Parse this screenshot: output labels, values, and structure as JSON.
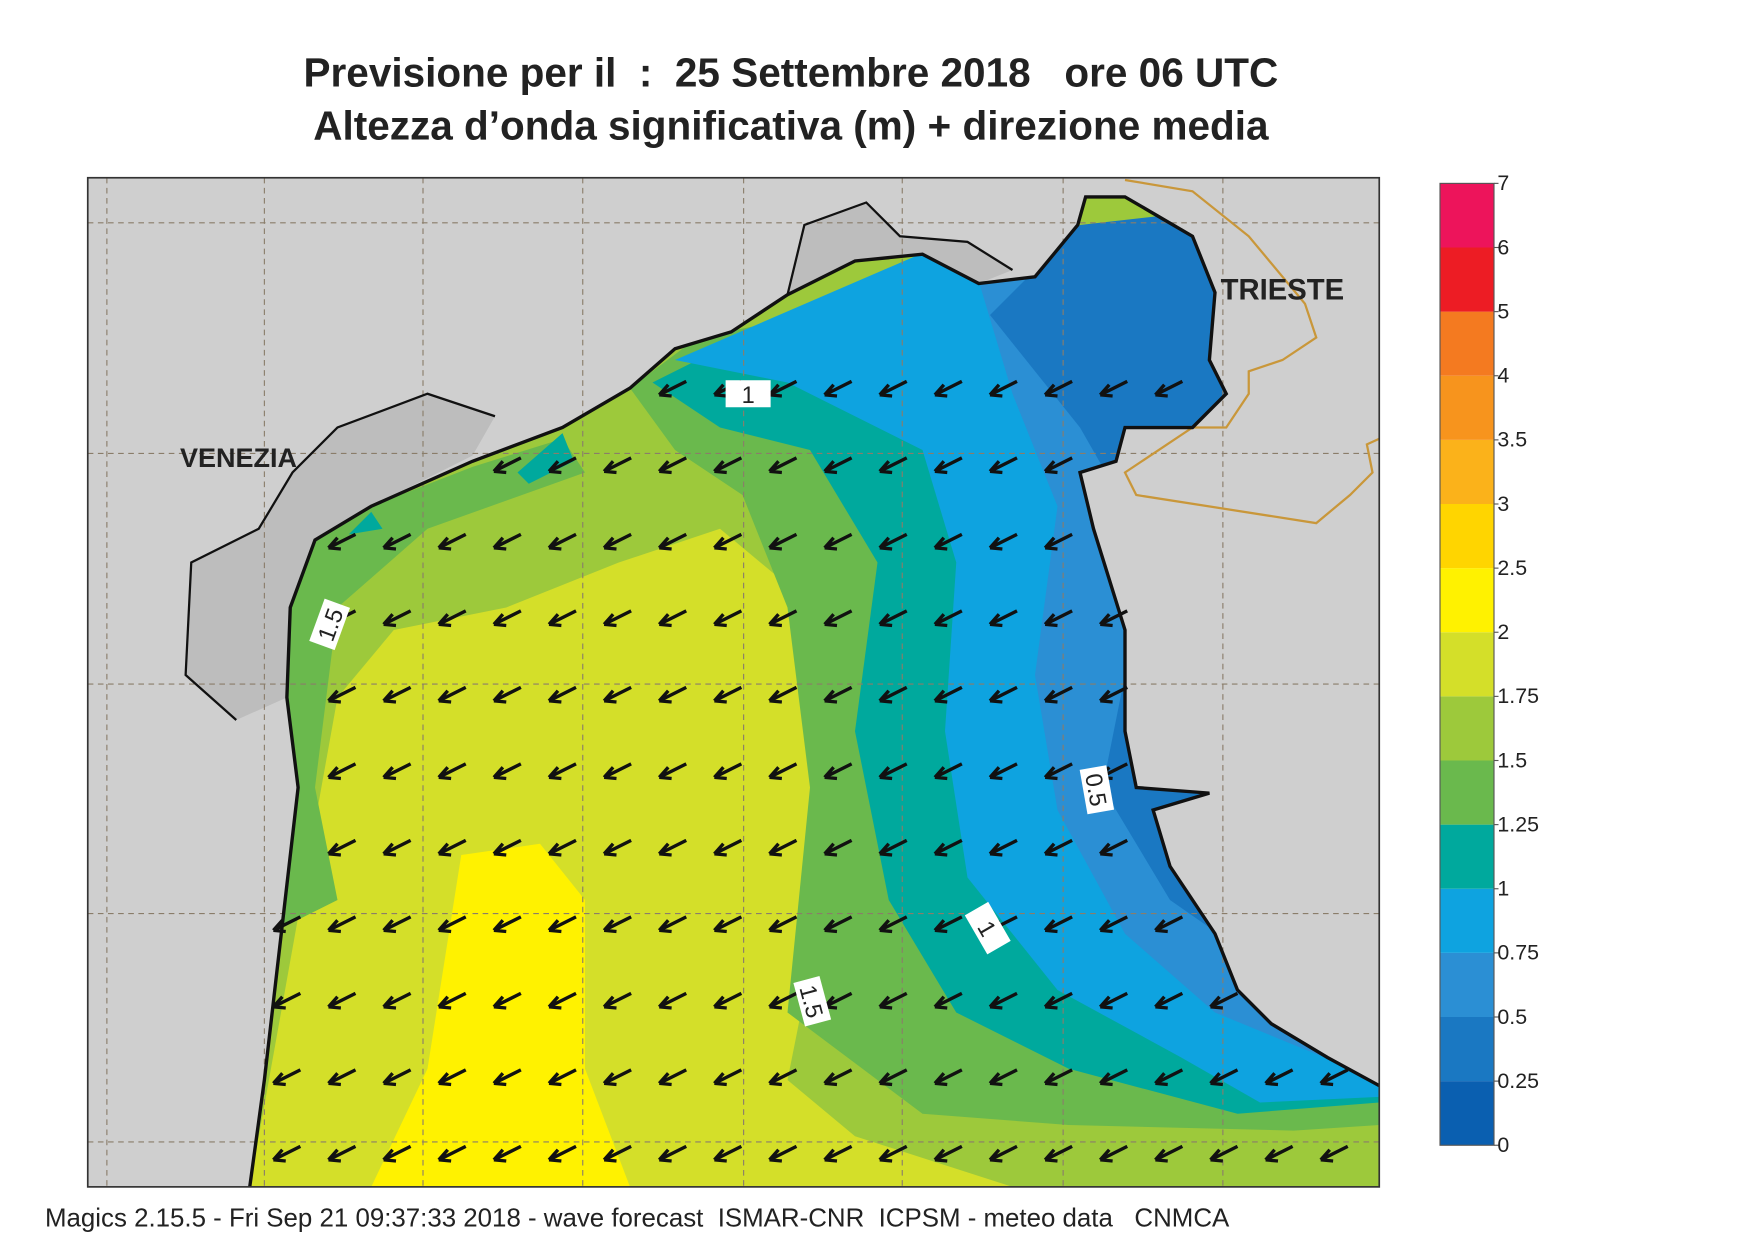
{
  "title": [
    "Previsione per il  :  25 Settembre 2018   ore 06 UTC",
    "Altezza d’onda significativa (m) + direzione media"
  ],
  "places": [
    "VENEZIA",
    "TRIESTE"
  ],
  "contour_labels": [
    1,
    1.5,
    0.5,
    1,
    1.5
  ],
  "legend": {
    "ticks": [
      0,
      0.25,
      0.5,
      0.75,
      1,
      1.25,
      1.5,
      1.75,
      2,
      2.5,
      3,
      3.5,
      4,
      5,
      6,
      7
    ],
    "colors": [
      "#0a5fb0",
      "#1a78c2",
      "#2b8fd4",
      "#0ea3e0",
      "#00a99d",
      "#6ab94d",
      "#9dc93b",
      "#d4df29",
      "#fff200",
      "#ffd500",
      "#fbb21a",
      "#f7941d",
      "#f47a20",
      "#ed1c24",
      "#ed145b"
    ]
  },
  "footer": "Magics 2.15.5 - Fri Sep 21 09:37:33 2018 - wave forecast  ISMAR-CNR  ICPSM - meteo data   CNMCA"
}
